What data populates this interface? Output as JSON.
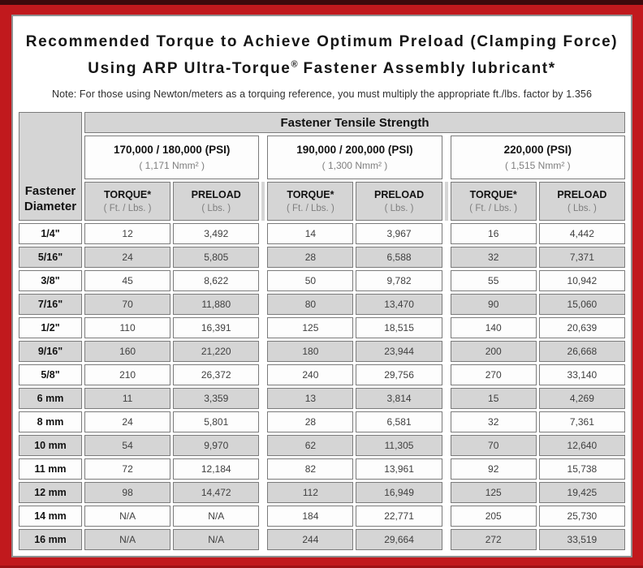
{
  "colors": {
    "background_red": "#c1191d",
    "top_strip_dark": "#3d0a0c",
    "cell_gray": "#d5d5d5",
    "cell_white": "#fdfdfd",
    "cell_border": "#7b7b7b",
    "panel_border": "#8f8f8f"
  },
  "header": {
    "title_line1": "Recommended Torque to Achieve Optimum Preload (Clamping Force)",
    "title_line2_pre": "Using ARP Ultra-Torque",
    "title_line2_reg": "®",
    "title_line2_post": " Fastener Assembly lubricant*",
    "note": "Note: For those using Newton/meters as a torquing reference, you must multiply the appropriate ft./lbs. factor by 1.356"
  },
  "table": {
    "corner_line1": "Fastener",
    "corner_line2": "Diameter",
    "tensile_header": "Fastener Tensile Strength",
    "groups": [
      {
        "psi": "170,000 / 180,000 (PSI)",
        "nmm": "( 1,171 Nmm² )"
      },
      {
        "psi": "190,000 / 200,000 (PSI)",
        "nmm": "( 1,300 Nmm² )"
      },
      {
        "psi": "220,000 (PSI)",
        "nmm": "( 1,515 Nmm² )"
      }
    ],
    "sub": {
      "torque": "TORQUE*",
      "torque_unit": "( Ft. / Lbs. )",
      "preload": "PRELOAD",
      "preload_unit": "( Lbs. )"
    },
    "rows": [
      {
        "d": "1/4\"",
        "v": [
          "12",
          "3,492",
          "14",
          "3,967",
          "16",
          "4,442"
        ]
      },
      {
        "d": "5/16\"",
        "v": [
          "24",
          "5,805",
          "28",
          "6,588",
          "32",
          "7,371"
        ]
      },
      {
        "d": "3/8\"",
        "v": [
          "45",
          "8,622",
          "50",
          "9,782",
          "55",
          "10,942"
        ]
      },
      {
        "d": "7/16\"",
        "v": [
          "70",
          "11,880",
          "80",
          "13,470",
          "90",
          "15,060"
        ]
      },
      {
        "d": "1/2\"",
        "v": [
          "110",
          "16,391",
          "125",
          "18,515",
          "140",
          "20,639"
        ]
      },
      {
        "d": "9/16\"",
        "v": [
          "160",
          "21,220",
          "180",
          "23,944",
          "200",
          "26,668"
        ]
      },
      {
        "d": "5/8\"",
        "v": [
          "210",
          "26,372",
          "240",
          "29,756",
          "270",
          "33,140"
        ]
      },
      {
        "d": "6 mm",
        "v": [
          "11",
          "3,359",
          "13",
          "3,814",
          "15",
          "4,269"
        ]
      },
      {
        "d": "8 mm",
        "v": [
          "24",
          "5,801",
          "28",
          "6,581",
          "32",
          "7,361"
        ]
      },
      {
        "d": "10 mm",
        "v": [
          "54",
          "9,970",
          "62",
          "11,305",
          "70",
          "12,640"
        ]
      },
      {
        "d": "11 mm",
        "v": [
          "72",
          "12,184",
          "82",
          "13,961",
          "92",
          "15,738"
        ]
      },
      {
        "d": "12 mm",
        "v": [
          "98",
          "14,472",
          "112",
          "16,949",
          "125",
          "19,425"
        ]
      },
      {
        "d": "14 mm",
        "v": [
          "N/A",
          "N/A",
          "184",
          "22,771",
          "205",
          "25,730"
        ]
      },
      {
        "d": "16 mm",
        "v": [
          "N/A",
          "N/A",
          "244",
          "29,664",
          "272",
          "33,519"
        ]
      }
    ]
  }
}
